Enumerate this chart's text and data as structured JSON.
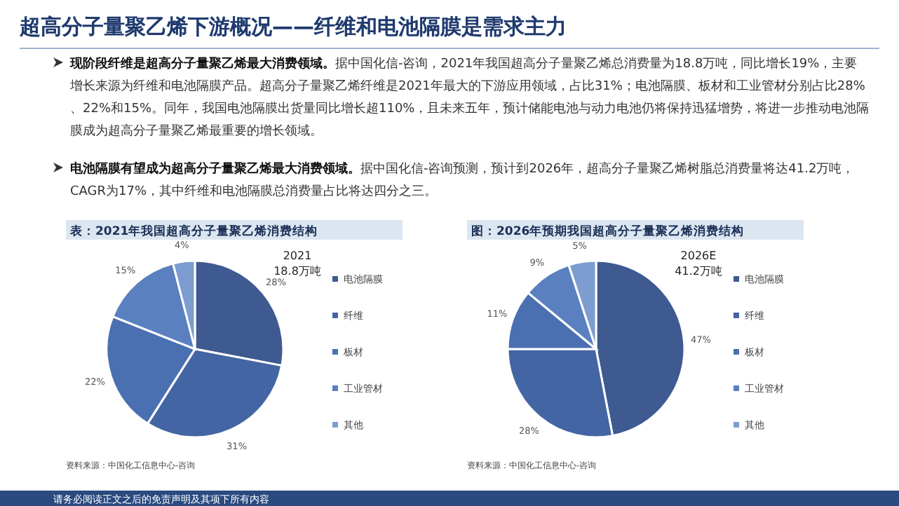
{
  "chart_data": [
    {
      "type": "other",
      "title": "超高分子量聚乙烯下游概况——纤维和电池隔膜是需求主力",
      "annotations": [
        "现阶段纤维是超高分子量聚乙烯最大消费领域。",
        "据中国化信-咨询，2021年我国超高分子量聚乙烯总消费量为18.8万吨，同比增长19%，主要增长来源为纤维和电池隔膜产品。超高分子量聚乙烯纤维是2021年最大的下游应用领域，占比31%；电池隔膜、板材和工业管材分别占比28%、22%和15%。同年，我国电池隔膜出货量同比增长超110%，且未来五年，预计储能电池与动力电池仍将保持迅猛增势，将进一步推动电池隔膜成为超高分子量聚乙烯最重要的增长领域。",
        "电池隔膜有望成为超高分子量聚乙烯最大消费领域。",
        "据中国化信-咨询预测，预计到2026年，超高分子量聚乙烯树脂总消费量将达41.2万吨，CAGR为17%，其中纤维和电池隔膜总消费量占比将达四分之三。",
        "请务必阅读正文之后的免责声明及其项下所有内容"
      ]
    },
    {
      "type": "pie",
      "title": "表：2021年我国超高分子量聚乙烯消费结构",
      "categories": [
        "电池隔膜",
        "纤维",
        "板材",
        "工业管材",
        "其他"
      ],
      "values": [
        28,
        31,
        22,
        15,
        4
      ],
      "value_labels": [
        "28%",
        "31%",
        "22%",
        "15%",
        "4%"
      ],
      "colors": [
        "#3e5a91",
        "#4465a3",
        "#4a70b2",
        "#5a80c0",
        "#7d9cd0"
      ],
      "legend": "right",
      "annotations": [
        "2021",
        "18.8万吨",
        "资料来源：中国化工信息中心-咨询"
      ]
    },
    {
      "type": "pie",
      "title": "图：2026年预期我国超高分子量聚乙烯消费结构",
      "categories": [
        "电池隔膜",
        "纤维",
        "板材",
        "工业管材",
        "其他"
      ],
      "values": [
        47,
        28,
        11,
        9,
        5
      ],
      "value_labels": [
        "47%",
        "28%",
        "11%",
        "9%",
        "5%"
      ],
      "colors": [
        "#3e5a91",
        "#4465a3",
        "#4a70b2",
        "#5a80c0",
        "#7d9cd0"
      ],
      "legend": "right",
      "annotations": [
        "2026E",
        "41.2万吨",
        "资料来源：中国化工信息中心-咨询"
      ]
    }
  ]
}
